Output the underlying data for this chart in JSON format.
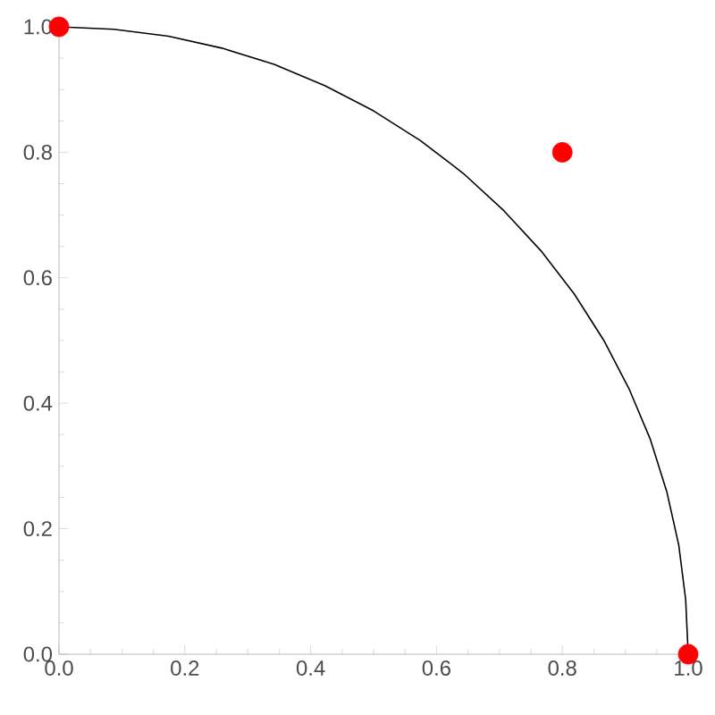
{
  "chart_data": {
    "type": "line",
    "xlim": [
      0,
      1
    ],
    "ylim": [
      0,
      1
    ],
    "xticks": [
      {
        "value": 0,
        "label": "0.0"
      },
      {
        "value": 0.2,
        "label": "0.2"
      },
      {
        "value": 0.4,
        "label": "0.4"
      },
      {
        "value": 0.6,
        "label": "0.6"
      },
      {
        "value": 0.8,
        "label": "0.8"
      },
      {
        "value": 1,
        "label": "1.0"
      }
    ],
    "yticks": [
      {
        "value": 0,
        "label": "0.0"
      },
      {
        "value": 0.2,
        "label": "0.2"
      },
      {
        "value": 0.4,
        "label": "0.4"
      },
      {
        "value": 0.6,
        "label": "0.6"
      },
      {
        "value": 0.8,
        "label": "0.8"
      },
      {
        "value": 1,
        "label": "1.0"
      }
    ],
    "series": [
      {
        "color": "#000000",
        "x": [
          0,
          0.087,
          0.174,
          0.259,
          0.342,
          0.423,
          0.5,
          0.574,
          0.643,
          0.707,
          0.766,
          0.819,
          0.866,
          0.906,
          0.94,
          0.966,
          0.985,
          0.996,
          1
        ],
        "values": [
          1,
          0.996,
          0.985,
          0.966,
          0.94,
          0.906,
          0.866,
          0.819,
          0.766,
          0.707,
          0.643,
          0.574,
          0.5,
          0.423,
          0.342,
          0.259,
          0.174,
          0.087,
          0
        ]
      },
      {
        "type": "scatter",
        "color": "#ff0000",
        "marker": "circle",
        "x": [
          0,
          0.8,
          1
        ],
        "values": [
          1,
          0.8,
          0
        ]
      }
    ]
  }
}
